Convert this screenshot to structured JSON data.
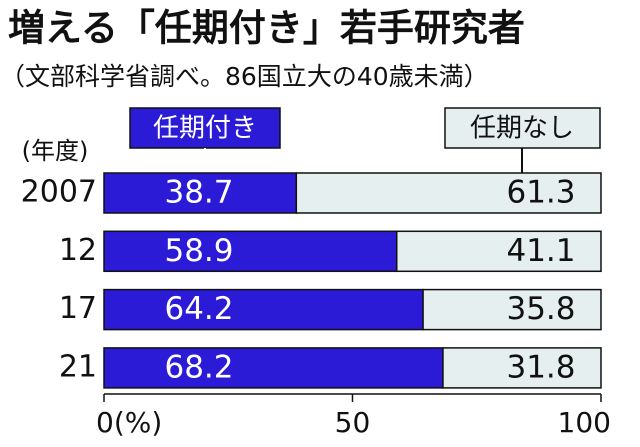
{
  "chart_data": {
    "type": "stacked-bar-horizontal",
    "title": "増える「任期付き」若手研究者",
    "subtitle": "（文部科学省調べ。86国立大の40歳未満）",
    "y_label": "(年度)",
    "categories": [
      "2007",
      "12",
      "17",
      "21"
    ],
    "series": [
      {
        "name": "任期付き",
        "color": "#2b1bd6",
        "values": [
          38.7,
          58.9,
          64.2,
          68.2
        ]
      },
      {
        "name": "任期なし",
        "color": "#e6eff0",
        "values": [
          61.3,
          41.1,
          35.8,
          31.8
        ]
      }
    ],
    "xlim": [
      0,
      100
    ],
    "xticks": [
      {
        "value": 0,
        "label": "0(%)"
      },
      50,
      100
    ]
  }
}
